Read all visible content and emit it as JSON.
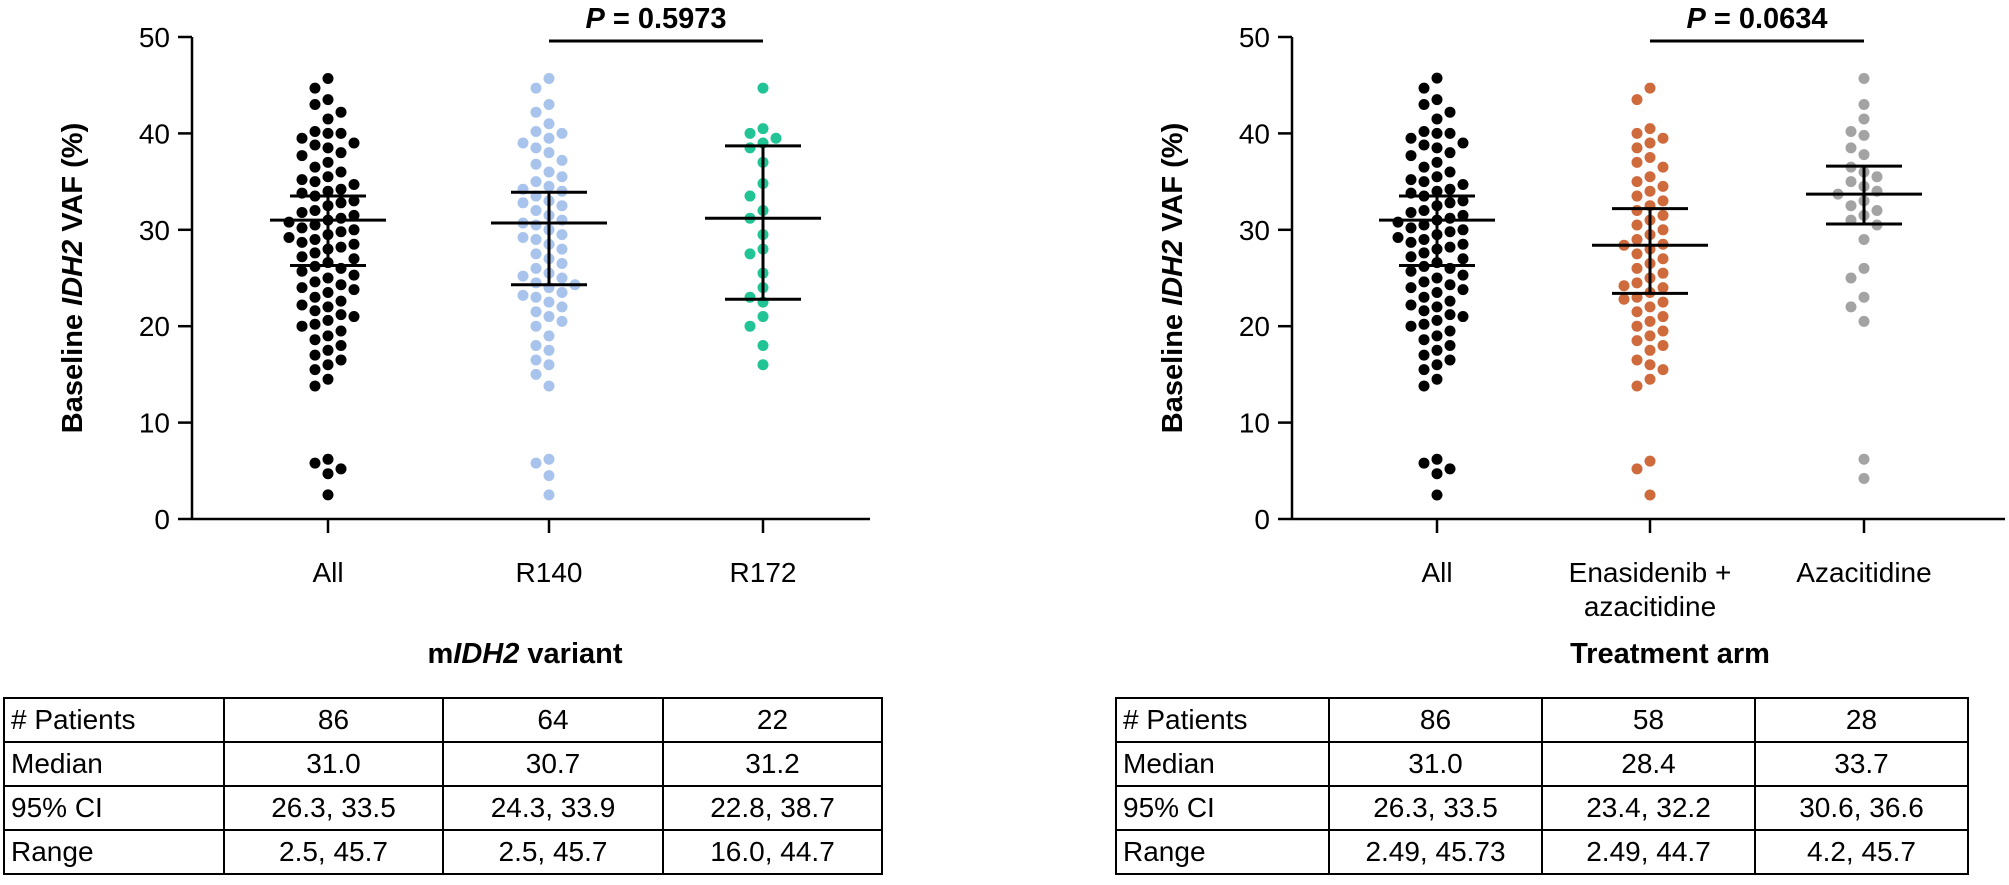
{
  "panels": [
    {
      "xtitle_parts": [
        "m",
        "IDH2",
        " variant"
      ],
      "ylabel_parts": [
        "Baseline ",
        "IDH2",
        " VAF (%)"
      ],
      "pvalue": {
        "prefix": "P",
        "text": " = 0.5973"
      },
      "table": {
        "rows": [
          {
            "label": "# Patients",
            "values": [
              "86",
              "64",
              "22"
            ]
          },
          {
            "label": "Median",
            "values": [
              "31.0",
              "30.7",
              "31.2"
            ]
          },
          {
            "label": "95% CI",
            "values": [
              "26.3, 33.5",
              "24.3, 33.9",
              "22.8, 38.7"
            ]
          },
          {
            "label": "Range",
            "values": [
              "2.5, 45.7",
              "2.5, 45.7",
              "16.0, 44.7"
            ]
          }
        ]
      }
    },
    {
      "xtitle_parts": [
        "Treatment arm"
      ],
      "ylabel_parts": [
        "Baseline ",
        "IDH2",
        " VAF (%)"
      ],
      "pvalue": {
        "prefix": "P",
        "text": " = 0.0634"
      },
      "table": {
        "rows": [
          {
            "label": "# Patients",
            "values": [
              "86",
              "58",
              "28"
            ]
          },
          {
            "label": "Median",
            "values": [
              "31.0",
              "28.4",
              "33.7"
            ]
          },
          {
            "label": "95% CI",
            "values": [
              "26.3, 33.5",
              "23.4, 32.2",
              "30.6, 36.6"
            ]
          },
          {
            "label": "Range",
            "values": [
              "2.49, 45.73",
              "2.49, 44.7",
              "4.2, 45.7"
            ]
          }
        ]
      }
    }
  ],
  "chart_data": [
    {
      "type": "scatter",
      "title": "",
      "xlabel": "mIDH2 variant",
      "ylabel": "Baseline IDH2 VAF (%)",
      "ylim": [
        0,
        50
      ],
      "yticks": [
        0,
        10,
        20,
        30,
        40,
        50
      ],
      "grid": false,
      "categories": [
        {
          "lines": [
            "All"
          ]
        },
        {
          "lines": [
            "R140"
          ]
        },
        {
          "lines": [
            "R172"
          ]
        }
      ],
      "comparison": {
        "from": 1,
        "to": 2,
        "label": "P = 0.5973"
      },
      "series": [
        {
          "color": "#000000",
          "median": 31.0,
          "ci": [
            26.3,
            33.5
          ],
          "values": [
            45.7,
            44.7,
            43.5,
            43.0,
            42.2,
            41.5,
            40.2,
            40.0,
            40.0,
            39.5,
            39.0,
            38.8,
            38.5,
            38.0,
            37.7,
            37.0,
            36.5,
            36.0,
            35.5,
            35.2,
            35.0,
            34.7,
            34.2,
            34.0,
            33.8,
            33.5,
            33.0,
            32.8,
            32.5,
            32.0,
            31.8,
            31.5,
            31.2,
            31.0,
            30.8,
            30.5,
            30.2,
            30.0,
            29.8,
            29.5,
            29.2,
            29.0,
            28.7,
            28.5,
            28.2,
            28.0,
            27.6,
            27.2,
            27.0,
            26.6,
            26.2,
            26.0,
            25.7,
            25.3,
            25.0,
            24.6,
            24.3,
            24.0,
            23.8,
            23.5,
            23.0,
            22.6,
            22.2,
            22.0,
            21.6,
            21.2,
            21.0,
            20.6,
            20.2,
            20.0,
            19.5,
            19.0,
            18.6,
            18.0,
            17.5,
            17.0,
            16.5,
            16.0,
            15.5,
            14.5,
            13.8,
            6.2,
            5.8,
            5.2,
            4.7,
            2.5
          ]
        },
        {
          "color": "#a9c4ec",
          "median": 30.7,
          "ci": [
            24.3,
            33.9
          ],
          "values": [
            45.7,
            44.7,
            43.0,
            42.2,
            41.0,
            40.2,
            40.0,
            39.5,
            39.0,
            38.5,
            38.0,
            37.2,
            36.8,
            36.0,
            35.5,
            35.0,
            34.5,
            34.0,
            33.5,
            33.0,
            32.5,
            32.0,
            31.5,
            31.0,
            30.7,
            30.5,
            30.0,
            29.5,
            29.0,
            28.5,
            28.0,
            27.5,
            27.0,
            26.5,
            26.0,
            25.5,
            25.0,
            24.5,
            24.3,
            24.0,
            23.5,
            23.0,
            22.5,
            22.0,
            21.5,
            21.0,
            20.5,
            20.0,
            19.0,
            18.0,
            17.5,
            16.5,
            16.0,
            15.0,
            13.8,
            6.2,
            5.8,
            4.5,
            2.5,
            34.2,
            32.8,
            29.2,
            25.2,
            23.2
          ]
        },
        {
          "color": "#21c494",
          "median": 31.2,
          "ci": [
            22.8,
            38.7
          ],
          "values": [
            44.7,
            40.5,
            40.0,
            39.5,
            39.0,
            38.5,
            37.0,
            34.8,
            33.5,
            32.0,
            31.2,
            29.5,
            28.0,
            27.5,
            25.5,
            24.0,
            23.0,
            22.5,
            21.0,
            20.0,
            18.0,
            16.0
          ]
        }
      ]
    },
    {
      "type": "scatter",
      "title": "",
      "xlabel": "Treatment arm",
      "ylabel": "Baseline IDH2 VAF (%)",
      "ylim": [
        0,
        50
      ],
      "yticks": [
        0,
        10,
        20,
        30,
        40,
        50
      ],
      "grid": false,
      "categories": [
        {
          "lines": [
            "All"
          ]
        },
        {
          "lines": [
            "Enasidenib +",
            "azacitidine"
          ]
        },
        {
          "lines": [
            "Azacitidine"
          ]
        }
      ],
      "comparison": {
        "from": 1,
        "to": 2,
        "label": "P = 0.0634"
      },
      "series": [
        {
          "color": "#000000",
          "median": 31.0,
          "ci": [
            26.3,
            33.5
          ],
          "values": [
            45.73,
            44.7,
            43.5,
            43.0,
            42.2,
            41.5,
            40.2,
            40.0,
            40.0,
            39.5,
            39.0,
            38.8,
            38.5,
            38.0,
            37.7,
            37.0,
            36.5,
            36.0,
            35.5,
            35.2,
            35.0,
            34.7,
            34.2,
            34.0,
            33.8,
            33.5,
            33.0,
            32.8,
            32.5,
            32.0,
            31.8,
            31.5,
            31.2,
            31.0,
            30.8,
            30.5,
            30.2,
            30.0,
            29.8,
            29.5,
            29.2,
            29.0,
            28.7,
            28.5,
            28.2,
            28.0,
            27.6,
            27.2,
            27.0,
            26.6,
            26.2,
            26.0,
            25.7,
            25.3,
            25.0,
            24.6,
            24.3,
            24.0,
            23.8,
            23.5,
            23.0,
            22.6,
            22.2,
            22.0,
            21.6,
            21.2,
            21.0,
            20.6,
            20.2,
            20.0,
            19.5,
            19.0,
            18.6,
            18.0,
            17.5,
            17.0,
            16.5,
            16.0,
            15.5,
            14.5,
            13.8,
            6.2,
            5.8,
            5.2,
            4.7,
            2.49
          ]
        },
        {
          "color": "#cf6a3c",
          "median": 28.4,
          "ci": [
            23.4,
            32.2
          ],
          "values": [
            44.7,
            43.5,
            40.5,
            40.0,
            39.5,
            39.0,
            38.5,
            37.5,
            37.0,
            36.5,
            35.5,
            35.0,
            34.5,
            34.0,
            33.0,
            32.5,
            32.0,
            31.5,
            31.0,
            30.5,
            30.0,
            29.5,
            29.0,
            28.5,
            28.4,
            28.0,
            27.5,
            27.0,
            26.5,
            26.0,
            25.5,
            25.0,
            24.5,
            24.0,
            23.5,
            23.0,
            22.5,
            22.0,
            21.5,
            21.0,
            20.5,
            20.0,
            19.5,
            19.0,
            18.5,
            18.0,
            17.5,
            16.5,
            16.0,
            15.5,
            14.5,
            13.8,
            6.0,
            5.2,
            2.49,
            33.5,
            24.2,
            22.8
          ]
        },
        {
          "color": "#a3a3a3",
          "median": 33.7,
          "ci": [
            30.6,
            36.6
          ],
          "values": [
            45.7,
            43.0,
            41.5,
            40.2,
            39.8,
            38.5,
            37.8,
            36.5,
            36.0,
            35.5,
            35.0,
            34.5,
            34.0,
            33.7,
            33.0,
            32.5,
            32.0,
            31.5,
            31.0,
            30.5,
            29.0,
            26.0,
            25.0,
            23.0,
            22.0,
            20.5,
            6.2,
            4.2
          ]
        }
      ]
    }
  ]
}
